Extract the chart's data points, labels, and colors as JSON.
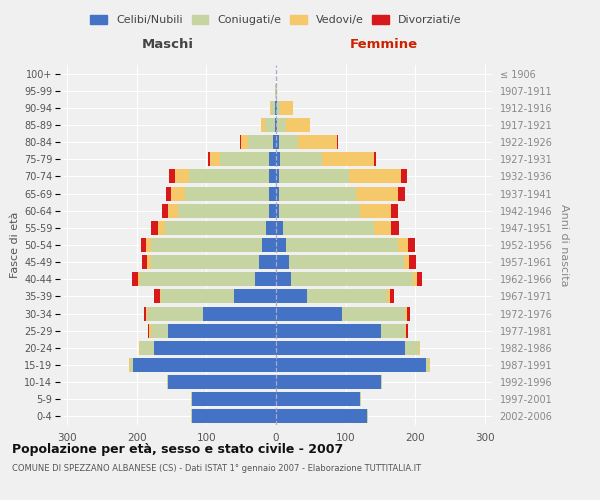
{
  "age_groups": [
    "0-4",
    "5-9",
    "10-14",
    "15-19",
    "20-24",
    "25-29",
    "30-34",
    "35-39",
    "40-44",
    "45-49",
    "50-54",
    "55-59",
    "60-64",
    "65-69",
    "70-74",
    "75-79",
    "80-84",
    "85-89",
    "90-94",
    "95-99",
    "100+"
  ],
  "birth_years": [
    "2002-2006",
    "1997-2001",
    "1992-1996",
    "1987-1991",
    "1982-1986",
    "1977-1981",
    "1972-1976",
    "1967-1971",
    "1962-1966",
    "1957-1961",
    "1952-1956",
    "1947-1951",
    "1942-1946",
    "1937-1941",
    "1932-1936",
    "1927-1931",
    "1922-1926",
    "1917-1921",
    "1912-1916",
    "1907-1911",
    "≤ 1906"
  ],
  "male": {
    "celibe": [
      120,
      120,
      155,
      205,
      175,
      155,
      105,
      60,
      30,
      25,
      20,
      15,
      10,
      10,
      10,
      10,
      5,
      2,
      1,
      0,
      0
    ],
    "coniugato": [
      2,
      2,
      2,
      5,
      20,
      25,
      80,
      105,
      165,
      155,
      160,
      145,
      130,
      120,
      115,
      70,
      35,
      14,
      6,
      1,
      0
    ],
    "vedovo": [
      0,
      0,
      0,
      1,
      1,
      2,
      2,
      2,
      3,
      5,
      6,
      10,
      15,
      20,
      20,
      15,
      10,
      5,
      2,
      0,
      0
    ],
    "divorziato": [
      0,
      0,
      0,
      0,
      1,
      2,
      3,
      8,
      8,
      8,
      8,
      10,
      8,
      8,
      8,
      3,
      2,
      0,
      0,
      0,
      0
    ]
  },
  "female": {
    "nubile": [
      130,
      120,
      150,
      215,
      185,
      150,
      95,
      45,
      22,
      18,
      15,
      10,
      5,
      5,
      5,
      6,
      4,
      2,
      1,
      0,
      0
    ],
    "coniugata": [
      2,
      2,
      2,
      5,
      20,
      35,
      90,
      115,
      175,
      165,
      160,
      130,
      115,
      110,
      100,
      60,
      28,
      12,
      5,
      0,
      0
    ],
    "vedova": [
      0,
      0,
      0,
      1,
      1,
      2,
      3,
      4,
      5,
      8,
      15,
      25,
      45,
      60,
      75,
      75,
      55,
      35,
      18,
      1,
      0
    ],
    "divorziata": [
      0,
      0,
      0,
      0,
      1,
      3,
      5,
      5,
      8,
      10,
      10,
      12,
      10,
      10,
      8,
      3,
      2,
      0,
      0,
      0,
      0
    ]
  },
  "colors": {
    "celibe": "#4472C4",
    "coniugato": "#C5D4A0",
    "vedovo": "#F5C869",
    "divorziato": "#D7191C"
  },
  "xlim": 310,
  "title": "Popolazione per età, sesso e stato civile - 2007",
  "subtitle": "COMUNE DI SPEZZANO ALBANESE (CS) - Dati ISTAT 1° gennaio 2007 - Elaborazione TUTTITALIA.IT",
  "ylabel_left": "Fasce di età",
  "ylabel_right": "Anni di nascita",
  "xlabel_maschi": "Maschi",
  "xlabel_femmine": "Femmine",
  "bg_color": "#F0F0F0",
  "plot_bg": "#F0F0F0",
  "legend_labels": [
    "Celibi/Nubili",
    "Coniugati/e",
    "Vedovi/e",
    "Divorziati/e"
  ]
}
